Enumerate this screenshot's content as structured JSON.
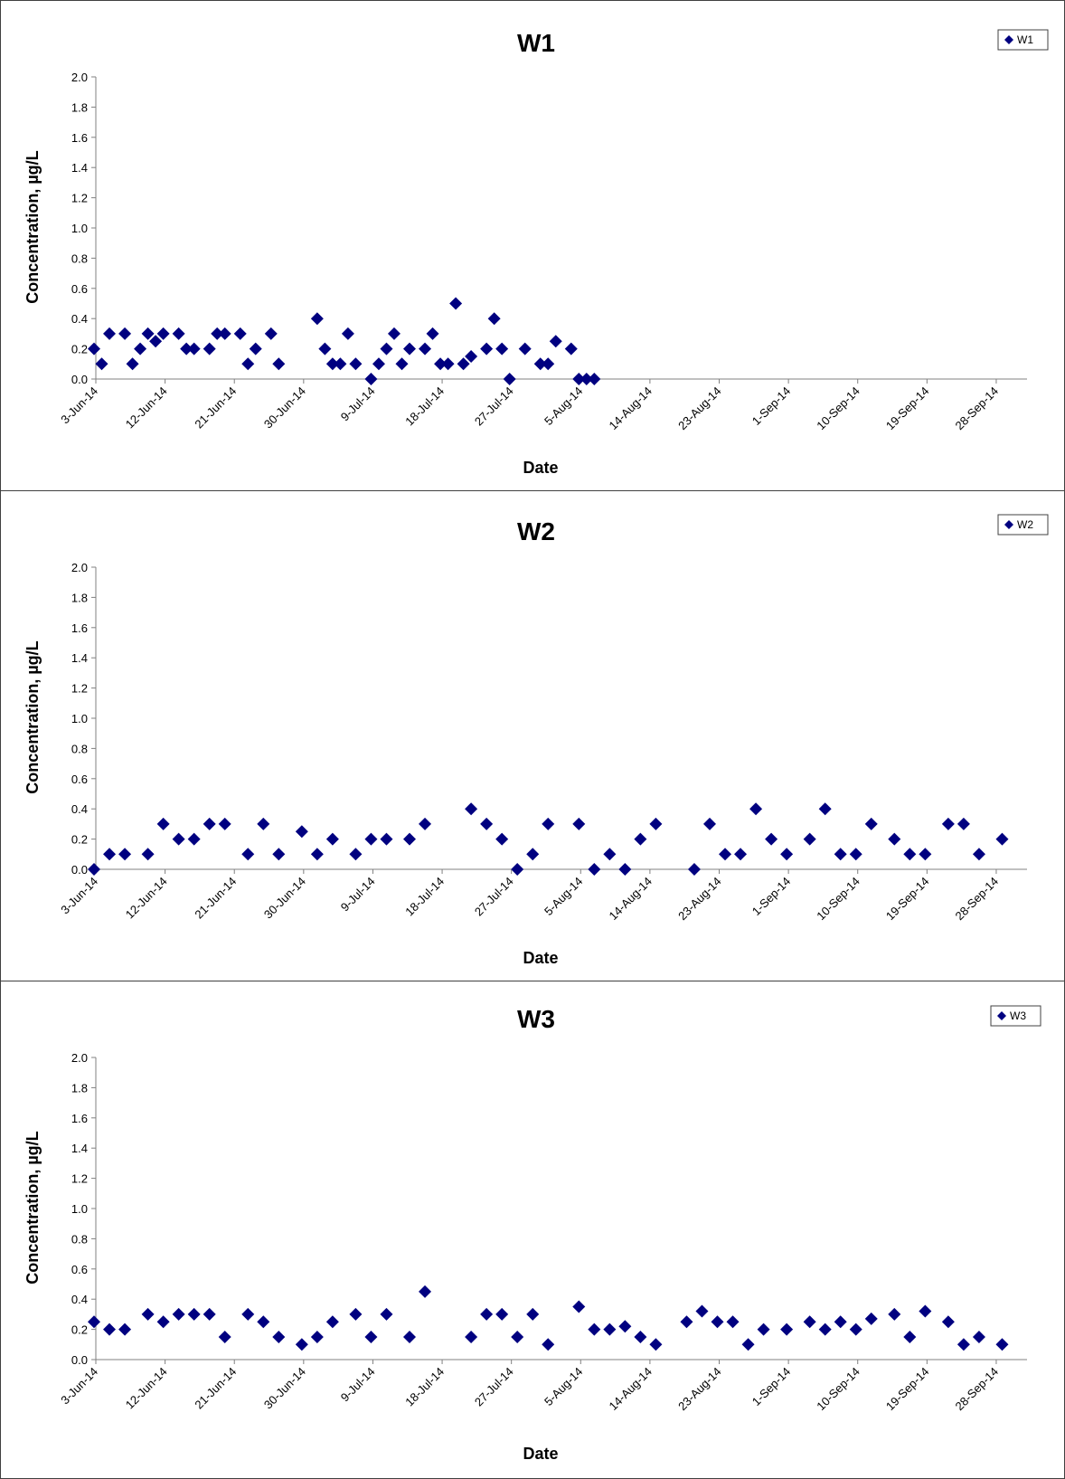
{
  "colors": {
    "marker": "#000080",
    "axis": "#808080",
    "border": "#404040"
  },
  "chart_data": [
    {
      "type": "scatter",
      "title": "W1",
      "xlabel": "Date",
      "ylabel": "Concentration, µg/L",
      "ylim": [
        0,
        2.0
      ],
      "yticks": [
        "0.0",
        "0.2",
        "0.4",
        "0.6",
        "0.8",
        "1.0",
        "1.2",
        "1.4",
        "1.6",
        "1.8",
        "2.0"
      ],
      "xlim": [
        "2014-06-03",
        "2014-10-02"
      ],
      "xticks": [
        "3-Jun-14",
        "12-Jun-14",
        "21-Jun-14",
        "30-Jun-14",
        "9-Jul-14",
        "18-Jul-14",
        "27-Jul-14",
        "5-Aug-14",
        "14-Aug-14",
        "23-Aug-14",
        "1-Sep-14",
        "10-Sep-14",
        "19-Sep-14",
        "28-Sep-14"
      ],
      "legend": "top-right",
      "grid": false,
      "series": [
        {
          "name": "W1",
          "marker": "diamond",
          "points": [
            [
              "2014-06-03",
              0.2
            ],
            [
              "2014-06-04",
              0.1
            ],
            [
              "2014-06-05",
              0.3
            ],
            [
              "2014-06-07",
              0.3
            ],
            [
              "2014-06-08",
              0.1
            ],
            [
              "2014-06-09",
              0.2
            ],
            [
              "2014-06-10",
              0.3
            ],
            [
              "2014-06-11",
              0.25
            ],
            [
              "2014-06-12",
              0.3
            ],
            [
              "2014-06-14",
              0.3
            ],
            [
              "2014-06-15",
              0.2
            ],
            [
              "2014-06-16",
              0.2
            ],
            [
              "2014-06-18",
              0.2
            ],
            [
              "2014-06-19",
              0.3
            ],
            [
              "2014-06-20",
              0.3
            ],
            [
              "2014-06-22",
              0.3
            ],
            [
              "2014-06-23",
              0.1
            ],
            [
              "2014-06-24",
              0.2
            ],
            [
              "2014-06-26",
              0.3
            ],
            [
              "2014-06-27",
              0.1
            ],
            [
              "2014-07-02",
              0.4
            ],
            [
              "2014-07-03",
              0.2
            ],
            [
              "2014-07-04",
              0.1
            ],
            [
              "2014-07-05",
              0.1
            ],
            [
              "2014-07-06",
              0.3
            ],
            [
              "2014-07-07",
              0.1
            ],
            [
              "2014-07-09",
              0.0
            ],
            [
              "2014-07-10",
              0.1
            ],
            [
              "2014-07-11",
              0.2
            ],
            [
              "2014-07-12",
              0.3
            ],
            [
              "2014-07-13",
              0.1
            ],
            [
              "2014-07-14",
              0.2
            ],
            [
              "2014-07-16",
              0.2
            ],
            [
              "2014-07-17",
              0.3
            ],
            [
              "2014-07-18",
              0.1
            ],
            [
              "2014-07-19",
              0.1
            ],
            [
              "2014-07-20",
              0.5
            ],
            [
              "2014-07-21",
              0.1
            ],
            [
              "2014-07-22",
              0.15
            ],
            [
              "2014-07-24",
              0.2
            ],
            [
              "2014-07-25",
              0.4
            ],
            [
              "2014-07-26",
              0.2
            ],
            [
              "2014-07-27",
              0.0
            ],
            [
              "2014-07-29",
              0.2
            ],
            [
              "2014-07-31",
              0.1
            ],
            [
              "2014-08-01",
              0.1
            ],
            [
              "2014-08-02",
              0.25
            ],
            [
              "2014-08-04",
              0.2
            ],
            [
              "2014-08-05",
              0.0
            ],
            [
              "2014-08-06",
              0.0
            ],
            [
              "2014-08-07",
              0.0
            ]
          ]
        }
      ]
    },
    {
      "type": "scatter",
      "title": "W2",
      "xlabel": "Date",
      "ylabel": "Concentration, µg/L",
      "ylim": [
        0,
        2.0
      ],
      "yticks": [
        "0.0",
        "0.2",
        "0.4",
        "0.6",
        "0.8",
        "1.0",
        "1.2",
        "1.4",
        "1.6",
        "1.8",
        "2.0"
      ],
      "xlim": [
        "2014-06-03",
        "2014-10-02"
      ],
      "xticks": [
        "3-Jun-14",
        "12-Jun-14",
        "21-Jun-14",
        "30-Jun-14",
        "9-Jul-14",
        "18-Jul-14",
        "27-Jul-14",
        "5-Aug-14",
        "14-Aug-14",
        "23-Aug-14",
        "1-Sep-14",
        "10-Sep-14",
        "19-Sep-14",
        "28-Sep-14"
      ],
      "legend": "top-right",
      "grid": false,
      "series": [
        {
          "name": "W2",
          "marker": "diamond",
          "points": [
            [
              "2014-06-03",
              0.0
            ],
            [
              "2014-06-05",
              0.1
            ],
            [
              "2014-06-07",
              0.1
            ],
            [
              "2014-06-10",
              0.1
            ],
            [
              "2014-06-12",
              0.3
            ],
            [
              "2014-06-14",
              0.2
            ],
            [
              "2014-06-16",
              0.2
            ],
            [
              "2014-06-18",
              0.3
            ],
            [
              "2014-06-20",
              0.3
            ],
            [
              "2014-06-23",
              0.1
            ],
            [
              "2014-06-25",
              0.3
            ],
            [
              "2014-06-27",
              0.1
            ],
            [
              "2014-06-30",
              0.25
            ],
            [
              "2014-07-02",
              0.1
            ],
            [
              "2014-07-04",
              0.2
            ],
            [
              "2014-07-07",
              0.1
            ],
            [
              "2014-07-09",
              0.2
            ],
            [
              "2014-07-11",
              0.2
            ],
            [
              "2014-07-14",
              0.2
            ],
            [
              "2014-07-16",
              0.3
            ],
            [
              "2014-07-22",
              0.4
            ],
            [
              "2014-07-24",
              0.3
            ],
            [
              "2014-07-26",
              0.2
            ],
            [
              "2014-07-28",
              0.0
            ],
            [
              "2014-07-30",
              0.1
            ],
            [
              "2014-08-01",
              0.3
            ],
            [
              "2014-08-05",
              0.3
            ],
            [
              "2014-08-07",
              0.0
            ],
            [
              "2014-08-09",
              0.1
            ],
            [
              "2014-08-11",
              0.0
            ],
            [
              "2014-08-13",
              0.2
            ],
            [
              "2014-08-15",
              0.3
            ],
            [
              "2014-08-20",
              0.0
            ],
            [
              "2014-08-22",
              0.3
            ],
            [
              "2014-08-24",
              0.1
            ],
            [
              "2014-08-26",
              0.1
            ],
            [
              "2014-08-28",
              0.4
            ],
            [
              "2014-08-30",
              0.2
            ],
            [
              "2014-09-01",
              0.1
            ],
            [
              "2014-09-04",
              0.2
            ],
            [
              "2014-09-06",
              0.4
            ],
            [
              "2014-09-08",
              0.1
            ],
            [
              "2014-09-10",
              0.1
            ],
            [
              "2014-09-12",
              0.3
            ],
            [
              "2014-09-15",
              0.2
            ],
            [
              "2014-09-17",
              0.1
            ],
            [
              "2014-09-19",
              0.1
            ],
            [
              "2014-09-22",
              0.3
            ],
            [
              "2014-09-24",
              0.3
            ],
            [
              "2014-09-26",
              0.1
            ],
            [
              "2014-09-29",
              0.2
            ]
          ]
        }
      ]
    },
    {
      "type": "scatter",
      "title": "W3",
      "xlabel": "Date",
      "ylabel": "Concentration, µg/L",
      "ylim": [
        0,
        2.0
      ],
      "yticks": [
        "0.0",
        "0.2",
        "0.4",
        "0.6",
        "0.8",
        "1.0",
        "1.2",
        "1.4",
        "1.6",
        "1.8",
        "2.0"
      ],
      "xlim": [
        "2014-06-03",
        "2014-10-02"
      ],
      "xticks": [
        "3-Jun-14",
        "12-Jun-14",
        "21-Jun-14",
        "30-Jun-14",
        "9-Jul-14",
        "18-Jul-14",
        "27-Jul-14",
        "5-Aug-14",
        "14-Aug-14",
        "23-Aug-14",
        "1-Sep-14",
        "10-Sep-14",
        "19-Sep-14",
        "28-Sep-14"
      ],
      "legend": "top-right",
      "grid": false,
      "series": [
        {
          "name": "W3",
          "marker": "diamond",
          "points": [
            [
              "2014-06-03",
              0.25
            ],
            [
              "2014-06-05",
              0.2
            ],
            [
              "2014-06-07",
              0.2
            ],
            [
              "2014-06-10",
              0.3
            ],
            [
              "2014-06-12",
              0.25
            ],
            [
              "2014-06-14",
              0.3
            ],
            [
              "2014-06-16",
              0.3
            ],
            [
              "2014-06-18",
              0.3
            ],
            [
              "2014-06-20",
              0.15
            ],
            [
              "2014-06-23",
              0.3
            ],
            [
              "2014-06-25",
              0.25
            ],
            [
              "2014-06-27",
              0.15
            ],
            [
              "2014-06-30",
              0.1
            ],
            [
              "2014-07-02",
              0.15
            ],
            [
              "2014-07-04",
              0.25
            ],
            [
              "2014-07-07",
              0.3
            ],
            [
              "2014-07-09",
              0.15
            ],
            [
              "2014-07-11",
              0.3
            ],
            [
              "2014-07-14",
              0.15
            ],
            [
              "2014-07-16",
              0.45
            ],
            [
              "2014-07-22",
              0.15
            ],
            [
              "2014-07-24",
              0.3
            ],
            [
              "2014-07-26",
              0.3
            ],
            [
              "2014-07-28",
              0.15
            ],
            [
              "2014-07-30",
              0.3
            ],
            [
              "2014-08-01",
              0.1
            ],
            [
              "2014-08-05",
              0.35
            ],
            [
              "2014-08-07",
              0.2
            ],
            [
              "2014-08-09",
              0.2
            ],
            [
              "2014-08-11",
              0.22
            ],
            [
              "2014-08-13",
              0.15
            ],
            [
              "2014-08-15",
              0.1
            ],
            [
              "2014-08-19",
              0.25
            ],
            [
              "2014-08-21",
              0.32
            ],
            [
              "2014-08-23",
              0.25
            ],
            [
              "2014-08-25",
              0.25
            ],
            [
              "2014-08-27",
              0.1
            ],
            [
              "2014-08-29",
              0.2
            ],
            [
              "2014-09-01",
              0.2
            ],
            [
              "2014-09-04",
              0.25
            ],
            [
              "2014-09-06",
              0.2
            ],
            [
              "2014-09-08",
              0.25
            ],
            [
              "2014-09-10",
              0.2
            ],
            [
              "2014-09-12",
              0.27
            ],
            [
              "2014-09-15",
              0.3
            ],
            [
              "2014-09-17",
              0.15
            ],
            [
              "2014-09-19",
              0.32
            ],
            [
              "2014-09-22",
              0.25
            ],
            [
              "2014-09-24",
              0.1
            ],
            [
              "2014-09-26",
              0.15
            ],
            [
              "2014-09-29",
              0.1
            ]
          ]
        }
      ]
    }
  ]
}
